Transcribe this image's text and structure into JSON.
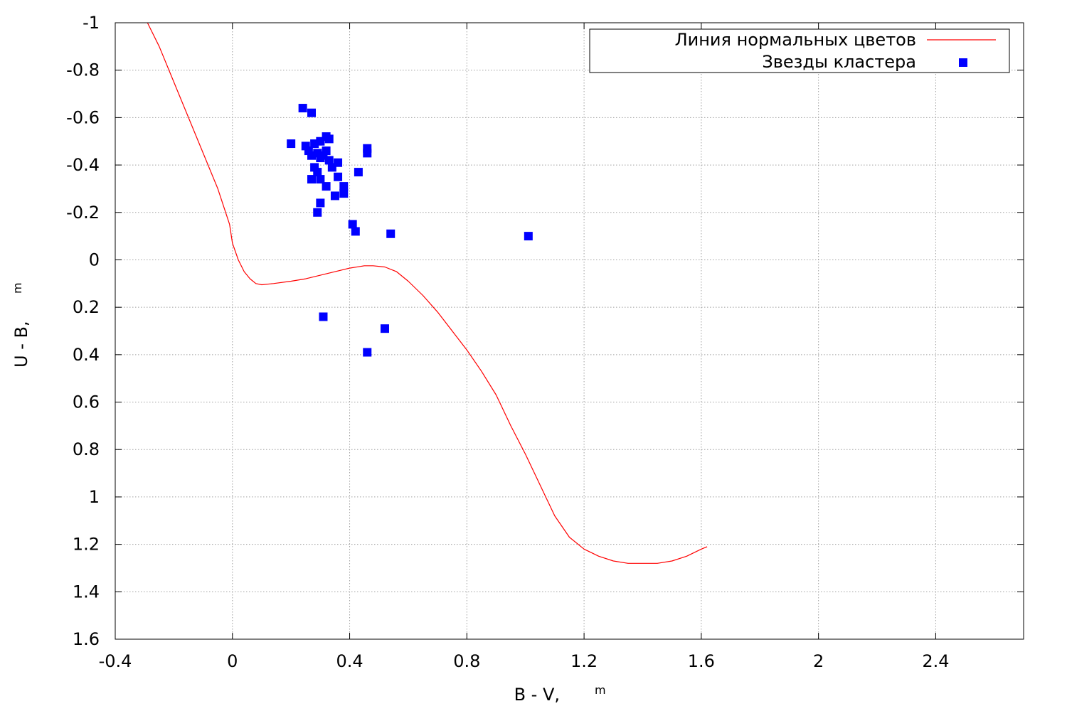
{
  "chart_data": {
    "type": "scatter",
    "title": "",
    "xlabel": "B - V,",
    "xlabel_superscript": "m",
    "ylabel": "U - B,",
    "ylabel_superscript": "m",
    "xlim": [
      -0.4,
      2.7
    ],
    "ylim": [
      -1,
      1.6
    ],
    "y_inverted": true,
    "grid": true,
    "legend_position": "top-right",
    "x_ticks": [
      "-0.4",
      "0",
      "0.4",
      "0.8",
      "1.2",
      "1.6",
      "2",
      "2.4"
    ],
    "y_ticks": [
      "-1",
      "-0.8",
      "-0.6",
      "-0.4",
      "-0.2",
      "0",
      "0.2",
      "0.4",
      "0.6",
      "0.8",
      "1",
      "1.2",
      "1.4",
      "1.6"
    ],
    "series": [
      {
        "name": "Линия нормальных цветов",
        "kind": "line",
        "color": "#ff0000",
        "x": [
          -0.29,
          -0.25,
          -0.2,
          -0.15,
          -0.1,
          -0.05,
          -0.01,
          0.0,
          0.02,
          0.04,
          0.06,
          0.08,
          0.1,
          0.14,
          0.2,
          0.25,
          0.3,
          0.35,
          0.4,
          0.45,
          0.48,
          0.52,
          0.56,
          0.6,
          0.65,
          0.7,
          0.75,
          0.8,
          0.85,
          0.9,
          0.95,
          1.0,
          1.05,
          1.1,
          1.15,
          1.2,
          1.25,
          1.3,
          1.35,
          1.4,
          1.45,
          1.5,
          1.55,
          1.6,
          1.62
        ],
        "y": [
          -1.0,
          -0.9,
          -0.75,
          -0.6,
          -0.45,
          -0.3,
          -0.15,
          -0.07,
          0.0,
          0.05,
          0.08,
          0.1,
          0.105,
          0.1,
          0.09,
          0.08,
          0.065,
          0.05,
          0.035,
          0.025,
          0.025,
          0.03,
          0.05,
          0.09,
          0.15,
          0.22,
          0.3,
          0.38,
          0.47,
          0.57,
          0.7,
          0.82,
          0.95,
          1.08,
          1.17,
          1.22,
          1.25,
          1.27,
          1.28,
          1.28,
          1.28,
          1.27,
          1.25,
          1.22,
          1.21
        ]
      },
      {
        "name": "Звезды кластера",
        "kind": "scatter",
        "color": "#0000ff",
        "marker": "square",
        "x": [
          0.2,
          0.24,
          0.27,
          0.32,
          0.33,
          0.25,
          0.26,
          0.28,
          0.3,
          0.29,
          0.27,
          0.31,
          0.32,
          0.33,
          0.3,
          0.28,
          0.36,
          0.34,
          0.29,
          0.43,
          0.46,
          0.46,
          0.36,
          0.27,
          0.3,
          0.32,
          0.38,
          0.35,
          0.38,
          0.3,
          0.29,
          0.41,
          0.42,
          0.54,
          1.01,
          0.31,
          0.52,
          0.46
        ],
        "y": [
          -0.49,
          -0.64,
          -0.62,
          -0.52,
          -0.51,
          -0.48,
          -0.46,
          -0.49,
          -0.5,
          -0.45,
          -0.44,
          -0.44,
          -0.46,
          -0.42,
          -0.43,
          -0.39,
          -0.41,
          -0.39,
          -0.37,
          -0.37,
          -0.47,
          -0.45,
          -0.35,
          -0.34,
          -0.34,
          -0.31,
          -0.31,
          -0.27,
          -0.28,
          -0.24,
          -0.2,
          -0.15,
          -0.12,
          -0.11,
          -0.1,
          0.24,
          0.29,
          0.39
        ]
      }
    ]
  }
}
